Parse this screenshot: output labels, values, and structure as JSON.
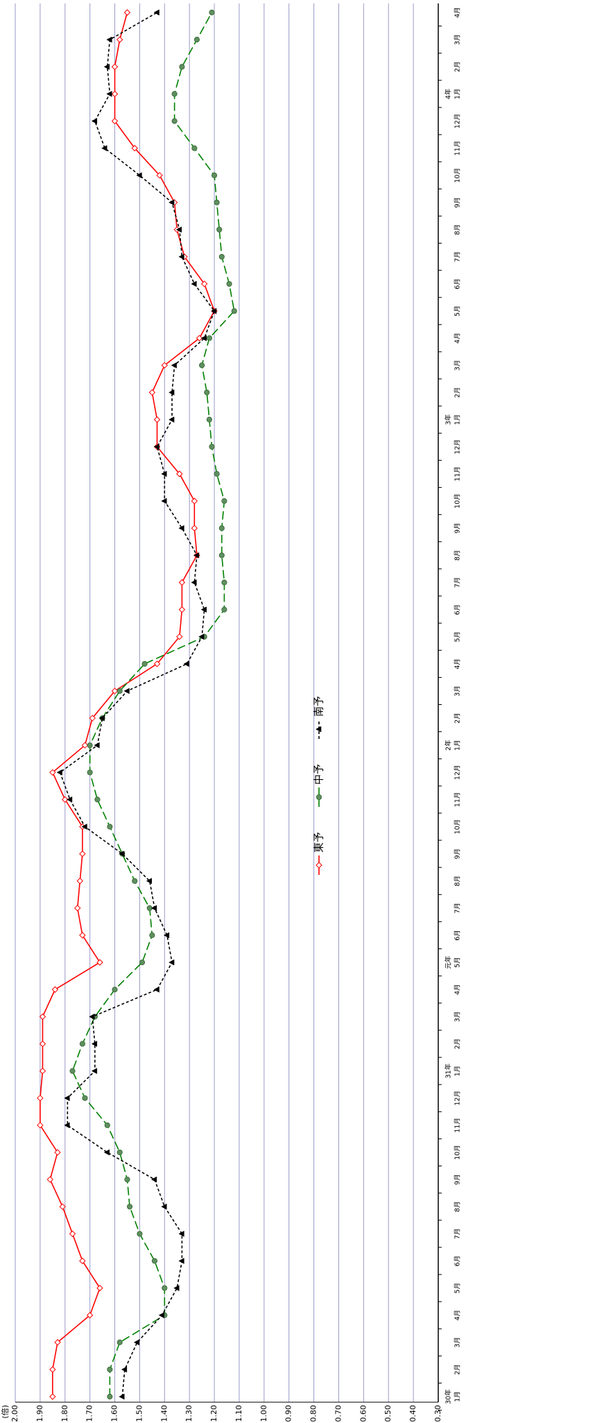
{
  "chart_data": {
    "type": "line",
    "y_unit": "(倍)",
    "categories": [
      "1月",
      "2月",
      "3月",
      "4月",
      "5月",
      "6月",
      "7月",
      "8月",
      "9月",
      "10月",
      "11月",
      "12月",
      "1月",
      "2月",
      "3月",
      "4月",
      "5月",
      "6月",
      "7月",
      "8月",
      "9月",
      "10月",
      "11月",
      "12月",
      "1月",
      "2月",
      "3月",
      "4月",
      "5月",
      "6月",
      "7月",
      "8月",
      "9月",
      "10月",
      "11月",
      "12月",
      "1月",
      "2月",
      "3月",
      "4月",
      "5月",
      "6月",
      "7月",
      "8月",
      "9月",
      "10月",
      "11月",
      "12月",
      "1月",
      "2月",
      "3月",
      "4月"
    ],
    "category_years": [
      "30年",
      null,
      null,
      null,
      null,
      null,
      null,
      null,
      null,
      null,
      null,
      null,
      "31年",
      null,
      null,
      null,
      "元年",
      null,
      null,
      null,
      null,
      null,
      null,
      null,
      "2年",
      null,
      null,
      null,
      null,
      null,
      null,
      null,
      null,
      null,
      null,
      null,
      "3年",
      null,
      null,
      null,
      null,
      null,
      null,
      null,
      null,
      null,
      null,
      null,
      "4年",
      null,
      null,
      null
    ],
    "series": [
      {
        "name": "東予",
        "color": "#ff0000",
        "marker": "diamond",
        "dash": "none",
        "values": [
          1.85,
          1.85,
          1.83,
          1.7,
          1.66,
          1.73,
          1.77,
          1.81,
          1.86,
          1.83,
          1.9,
          1.9,
          1.89,
          1.89,
          1.89,
          1.84,
          1.66,
          1.73,
          1.75,
          1.74,
          1.73,
          1.73,
          1.8,
          1.85,
          1.72,
          1.69,
          1.6,
          1.43,
          1.34,
          1.33,
          1.33,
          1.27,
          1.28,
          1.28,
          1.34,
          1.43,
          1.43,
          1.45,
          1.4,
          1.26,
          1.2,
          1.24,
          1.32,
          1.35,
          1.36,
          1.42,
          1.52,
          1.6,
          1.6,
          1.6,
          1.58,
          1.55
        ]
      },
      {
        "name": "中予",
        "color": "#008000",
        "marker": "circle",
        "dash": "12 5",
        "values": [
          1.62,
          1.62,
          1.58,
          1.4,
          1.4,
          1.44,
          1.5,
          1.54,
          1.55,
          1.58,
          1.63,
          1.72,
          1.77,
          1.73,
          1.68,
          1.6,
          1.49,
          1.45,
          1.46,
          1.52,
          1.57,
          1.62,
          1.67,
          1.7,
          1.7,
          1.65,
          1.58,
          1.48,
          1.24,
          1.16,
          1.16,
          1.17,
          1.17,
          1.16,
          1.19,
          1.21,
          1.22,
          1.23,
          1.25,
          1.22,
          1.12,
          1.14,
          1.17,
          1.18,
          1.19,
          1.2,
          1.28,
          1.36,
          1.36,
          1.33,
          1.27,
          1.21
        ]
      },
      {
        "name": "南予",
        "color": "#000000",
        "marker": "triangle",
        "dash": "4 3",
        "values": [
          1.57,
          1.56,
          1.51,
          1.41,
          1.35,
          1.33,
          1.33,
          1.4,
          1.44,
          1.63,
          1.79,
          1.79,
          1.68,
          1.68,
          1.69,
          1.43,
          1.37,
          1.39,
          1.44,
          1.46,
          1.57,
          1.72,
          1.78,
          1.82,
          1.67,
          1.65,
          1.55,
          1.31,
          1.25,
          1.24,
          1.28,
          1.27,
          1.33,
          1.4,
          1.4,
          1.43,
          1.37,
          1.37,
          1.36,
          1.24,
          1.2,
          1.28,
          1.33,
          1.34,
          1.37,
          1.5,
          1.64,
          1.68,
          1.62,
          1.63,
          1.62,
          1.43
        ]
      }
    ],
    "ylim": [
      0.3,
      2.0
    ],
    "yticks": [
      {
        "value": 2.0,
        "label": "2.00"
      },
      {
        "value": 1.9,
        "label": "1.90"
      },
      {
        "value": 1.8,
        "label": "1.80"
      },
      {
        "value": 1.7,
        "label": "1.70"
      },
      {
        "value": 1.6,
        "label": "1.60"
      },
      {
        "value": 1.5,
        "label": "1.50"
      },
      {
        "value": 1.4,
        "label": "1.40"
      },
      {
        "value": 1.3,
        "label": "1.30"
      },
      {
        "value": 1.2,
        "label": "1.20"
      },
      {
        "value": 1.1,
        "label": "1.10"
      },
      {
        "value": 1.0,
        "label": "1.00"
      },
      {
        "value": 0.9,
        "label": "0.90"
      },
      {
        "value": 0.8,
        "label": "0.80"
      },
      {
        "value": 0.7,
        "label": "0.70"
      },
      {
        "value": 0.6,
        "label": "0.60"
      },
      {
        "value": 0.5,
        "label": "0.50"
      },
      {
        "value": 0.4,
        "label": "0.40"
      },
      {
        "value": 0.3,
        "label": "0.30"
      }
    ],
    "grid": true,
    "grid_color": "#9a9ac8"
  }
}
